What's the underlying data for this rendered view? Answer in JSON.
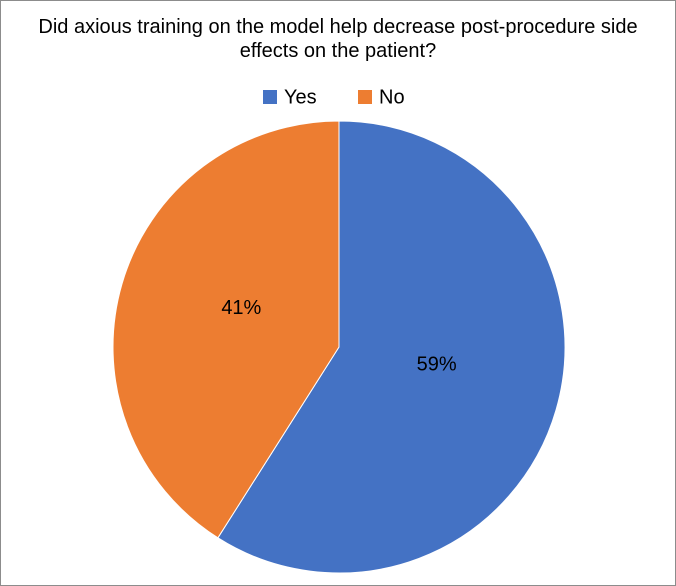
{
  "chart_data": {
    "type": "pie",
    "title": "Did axious training on the model help decrease post-procedure side effects on the patient?",
    "categories": [
      "Yes",
      "No"
    ],
    "values": [
      59,
      41
    ],
    "value_labels": [
      "59%",
      "41%"
    ],
    "colors": [
      "#4472c4",
      "#ed7d31"
    ],
    "legend": "top"
  }
}
